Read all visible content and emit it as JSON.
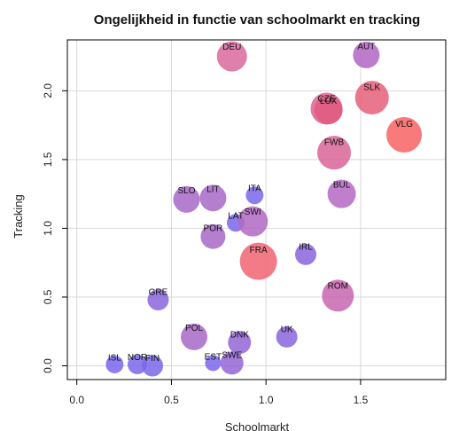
{
  "chart_data": {
    "type": "scatter",
    "title": "Ongelijkheid in functie van schoolmarkt en tracking",
    "xlabel": "Schoolmarkt",
    "ylabel": "Tracking",
    "xlim": [
      -0.05,
      1.95
    ],
    "ylim": [
      -0.1,
      2.37
    ],
    "x_ticks": [
      0.0,
      0.5,
      1.0,
      1.5
    ],
    "x_tick_labels": [
      "0.0",
      "0.5",
      "1.0",
      "1.5"
    ],
    "y_ticks": [
      0.0,
      0.5,
      1.0,
      1.5,
      2.0
    ],
    "y_tick_labels": [
      "0.0",
      "0.5",
      "1.0",
      "1.5",
      "2.0"
    ],
    "grid": true,
    "points": [
      {
        "label": "DEU",
        "x": 0.82,
        "y": 2.25,
        "size": 17,
        "color": "#d9689e"
      },
      {
        "label": "AUT",
        "x": 1.53,
        "y": 2.26,
        "size": 15,
        "color": "#b365c4"
      },
      {
        "label": "SLK",
        "x": 1.56,
        "y": 1.95,
        "size": 19,
        "color": "#e55f7a"
      },
      {
        "label": "CZE",
        "x": 1.32,
        "y": 1.87,
        "size": 18,
        "color": "#da6390"
      },
      {
        "label": "LUX",
        "x": 1.33,
        "y": 1.86,
        "size": 16,
        "color": "#e05a80"
      },
      {
        "label": "VLG",
        "x": 1.73,
        "y": 1.68,
        "size": 20,
        "color": "#f76363"
      },
      {
        "label": "FWB",
        "x": 1.36,
        "y": 1.55,
        "size": 19,
        "color": "#d86598"
      },
      {
        "label": "BUL",
        "x": 1.4,
        "y": 1.25,
        "size": 16,
        "color": "#b468c4"
      },
      {
        "label": "SLO",
        "x": 0.58,
        "y": 1.21,
        "size": 15,
        "color": "#a868c8"
      },
      {
        "label": "LIT",
        "x": 0.72,
        "y": 1.22,
        "size": 15,
        "color": "#a868c8"
      },
      {
        "label": "ITA",
        "x": 0.94,
        "y": 1.24,
        "size": 10,
        "color": "#7a67ea"
      },
      {
        "label": "LAT",
        "x": 0.84,
        "y": 1.04,
        "size": 10,
        "color": "#7a67ea"
      },
      {
        "label": "SWI",
        "x": 0.93,
        "y": 1.05,
        "size": 17,
        "color": "#b268c2"
      },
      {
        "label": "POR",
        "x": 0.72,
        "y": 0.94,
        "size": 14,
        "color": "#a868c8"
      },
      {
        "label": "IRL",
        "x": 1.21,
        "y": 0.81,
        "size": 12,
        "color": "#8a66dc"
      },
      {
        "label": "FRA",
        "x": 0.96,
        "y": 0.76,
        "size": 21,
        "color": "#f06472"
      },
      {
        "label": "ROM",
        "x": 1.38,
        "y": 0.51,
        "size": 18,
        "color": "#c866b0"
      },
      {
        "label": "GRE",
        "x": 0.43,
        "y": 0.48,
        "size": 12,
        "color": "#8a66dc"
      },
      {
        "label": "POL",
        "x": 0.62,
        "y": 0.21,
        "size": 15,
        "color": "#a868c8"
      },
      {
        "label": "DNK",
        "x": 0.86,
        "y": 0.17,
        "size": 13,
        "color": "#9466d6"
      },
      {
        "label": "UK",
        "x": 1.11,
        "y": 0.21,
        "size": 12,
        "color": "#8a66dc"
      },
      {
        "label": "EST",
        "x": 0.72,
        "y": 0.02,
        "size": 9,
        "color": "#7a67ea"
      },
      {
        "label": "SWE",
        "x": 0.82,
        "y": 0.02,
        "size": 13,
        "color": "#9466d6"
      },
      {
        "label": "ISL",
        "x": 0.2,
        "y": 0.01,
        "size": 10,
        "color": "#7a67ea"
      },
      {
        "label": "NOR",
        "x": 0.32,
        "y": 0.01,
        "size": 11,
        "color": "#7a67ea"
      },
      {
        "label": "FIN",
        "x": 0.4,
        "y": 0.0,
        "size": 12,
        "color": "#7a67ea"
      }
    ]
  }
}
